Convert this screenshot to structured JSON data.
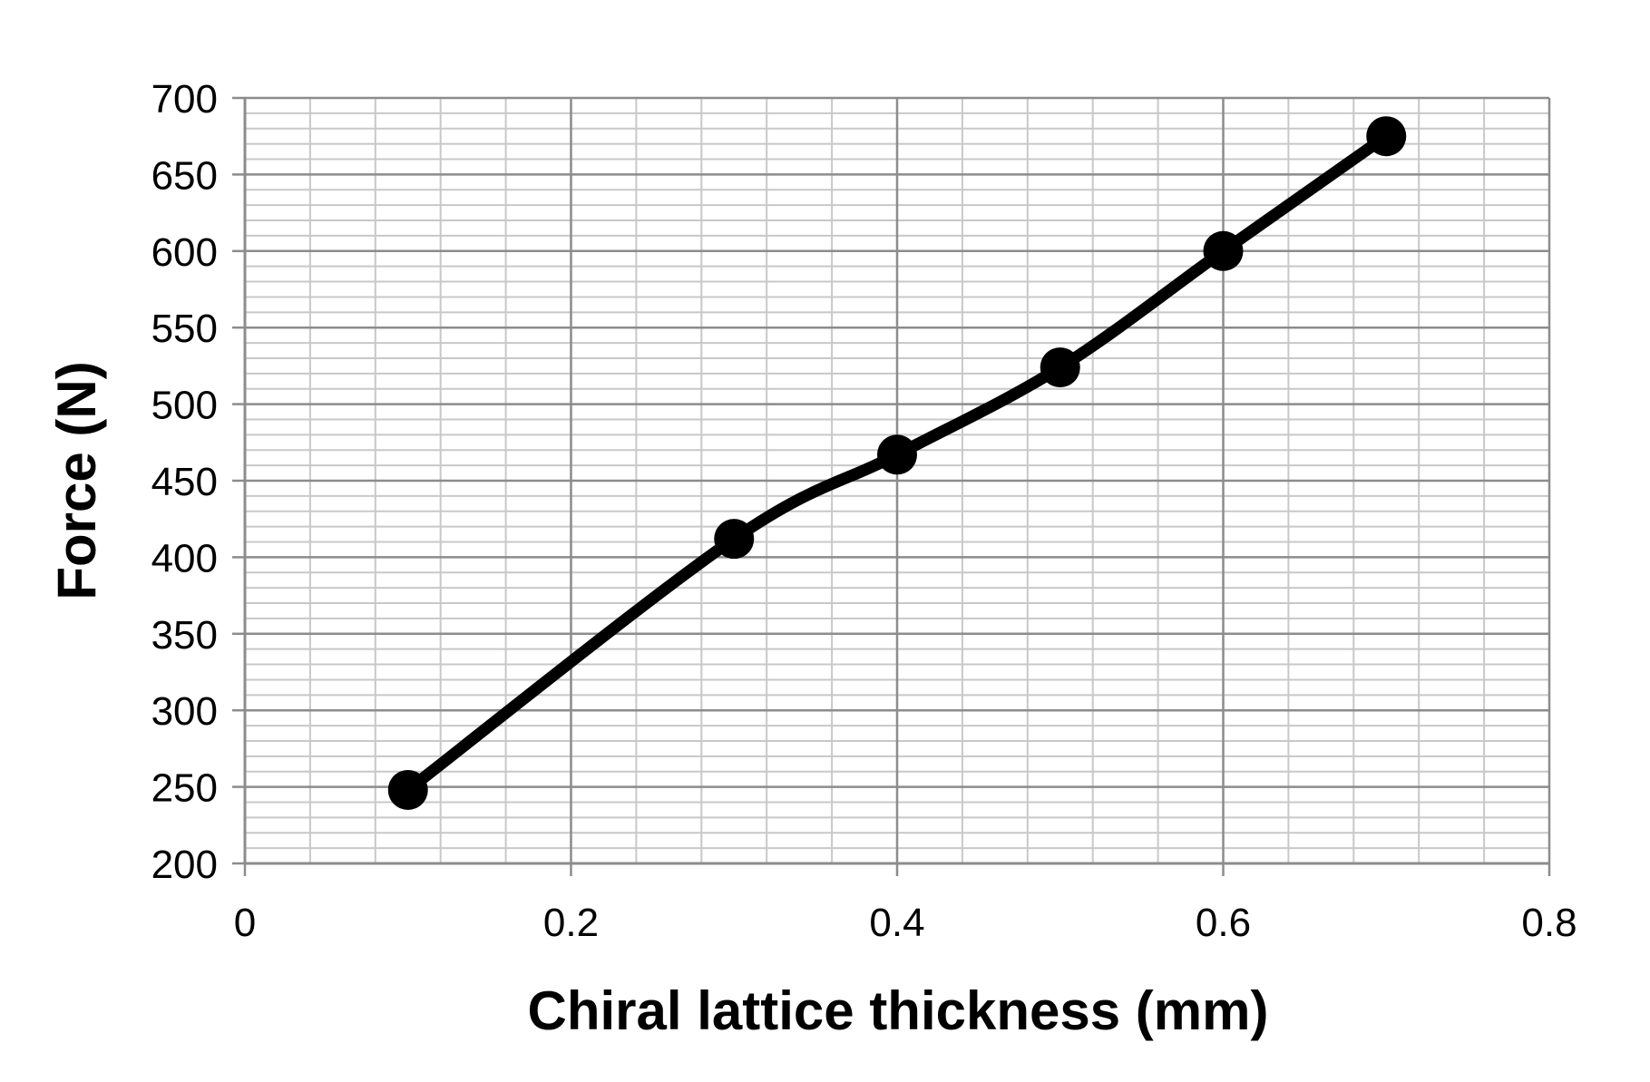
{
  "chart_data": {
    "type": "line",
    "xlabel": "Chiral lattice thickness (mm)",
    "ylabel": "Force (N)",
    "xlim": [
      0,
      0.8
    ],
    "ylim": [
      200,
      700
    ],
    "x_ticks": [
      "0",
      "0.2",
      "0.4",
      "0.6",
      "0.8"
    ],
    "y_ticks": [
      "200",
      "250",
      "300",
      "350",
      "400",
      "450",
      "500",
      "550",
      "600",
      "650",
      "700"
    ],
    "grid": true,
    "legend": "none",
    "line_style": "smoothed",
    "marker": "circle",
    "series": [
      {
        "color": "#000000",
        "x": [
          0.1,
          0.3,
          0.4,
          0.5,
          0.6,
          0.7
        ],
        "y": [
          248,
          412,
          467,
          524,
          600,
          675
        ]
      }
    ],
    "colors": {
      "major_grid": "#8c8c8c",
      "minor_grid": "#c8c8c8",
      "series": "#000000"
    }
  }
}
